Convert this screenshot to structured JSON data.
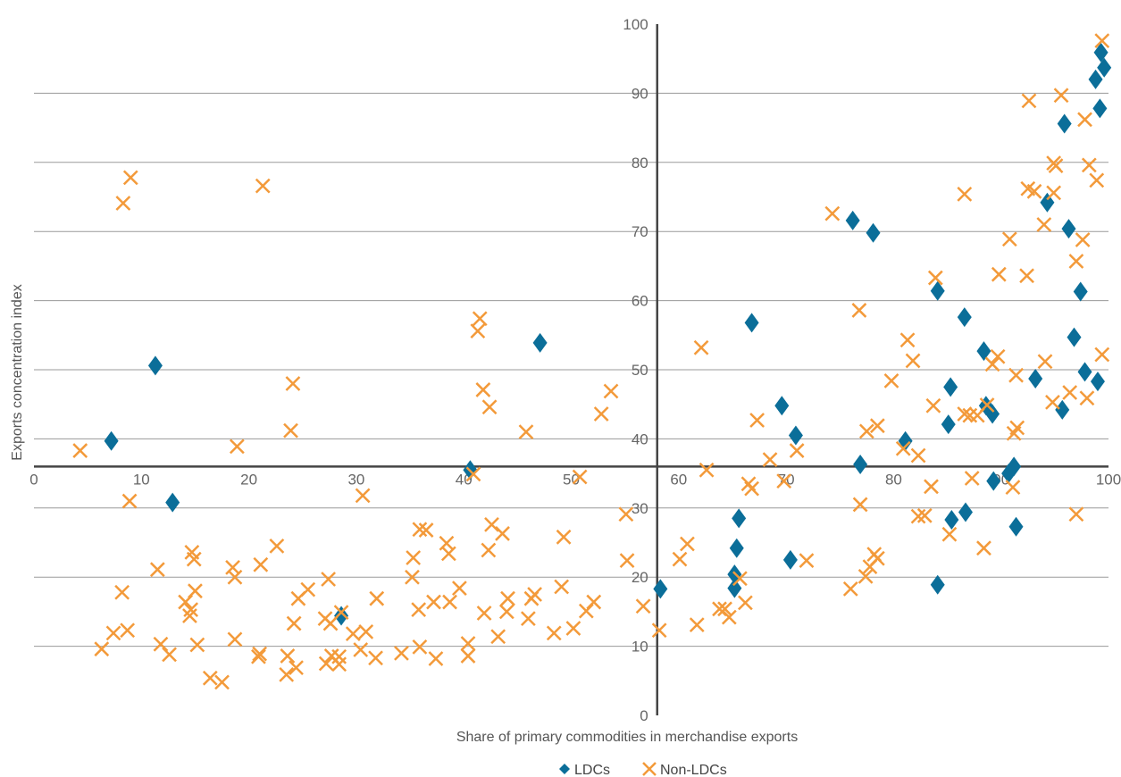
{
  "chart_data": {
    "type": "scatter",
    "xlabel": "Share of primary commodities in merchandise exports",
    "ylabel": "Exports concentration index",
    "xlim": [
      0,
      100
    ],
    "ylim": [
      0,
      100
    ],
    "x_ticks": [
      "0",
      "10",
      "20",
      "30",
      "40",
      "50",
      "60",
      "70",
      "80",
      "90",
      "100"
    ],
    "y_ticks": [
      "0",
      "10",
      "20",
      "30",
      "40",
      "50",
      "60",
      "70",
      "80",
      "90",
      "100"
    ],
    "x_axis_crosses_y_at": 36,
    "y_axis_crosses_x_at": 58,
    "grid": "horizontal",
    "legend_position": "bottom",
    "colors": {
      "LDCs": "#0b6e99",
      "Non-LDCs": "#f39a3a",
      "axis": "#444444",
      "grid": "#9a9a9a"
    },
    "series": [
      {
        "name": "LDCs",
        "marker": "diamond",
        "points": [
          [
            7.2,
            39.7
          ],
          [
            11.3,
            50.6
          ],
          [
            12.9,
            30.8
          ],
          [
            28.6,
            14.4
          ],
          [
            40.6,
            35.5
          ],
          [
            47.1,
            53.9
          ],
          [
            58.3,
            18.3
          ],
          [
            65.2,
            18.4
          ],
          [
            65.2,
            20.4
          ],
          [
            65.4,
            24.2
          ],
          [
            65.6,
            28.5
          ],
          [
            66.8,
            56.8
          ],
          [
            69.6,
            44.8
          ],
          [
            70.4,
            22.5
          ],
          [
            70.9,
            40.5
          ],
          [
            76.2,
            71.6
          ],
          [
            76.9,
            36.3
          ],
          [
            78.1,
            69.8
          ],
          [
            81.1,
            39.7
          ],
          [
            84.1,
            61.4
          ],
          [
            84.1,
            18.9
          ],
          [
            85.1,
            42.1
          ],
          [
            85.3,
            47.5
          ],
          [
            85.4,
            28.3
          ],
          [
            86.6,
            57.6
          ],
          [
            86.7,
            29.4
          ],
          [
            88.4,
            52.7
          ],
          [
            88.6,
            44.8
          ],
          [
            89.2,
            43.6
          ],
          [
            89.3,
            33.9
          ],
          [
            90.7,
            35.0
          ],
          [
            91.2,
            36.0
          ],
          [
            91.4,
            27.3
          ],
          [
            93.2,
            48.7
          ],
          [
            94.3,
            74.2
          ],
          [
            95.7,
            44.2
          ],
          [
            95.9,
            85.6
          ],
          [
            96.3,
            70.4
          ],
          [
            96.8,
            54.7
          ],
          [
            97.4,
            61.3
          ],
          [
            97.8,
            49.7
          ],
          [
            98.8,
            92.0
          ],
          [
            99.0,
            48.3
          ],
          [
            99.2,
            87.8
          ],
          [
            99.3,
            95.9
          ],
          [
            99.6,
            93.7
          ]
        ]
      },
      {
        "name": "Non-LDCs",
        "marker": "x",
        "points": [
          [
            4.3,
            38.3
          ],
          [
            6.3,
            9.6
          ],
          [
            7.4,
            11.9
          ],
          [
            8.2,
            17.8
          ],
          [
            8.3,
            74.1
          ],
          [
            8.7,
            12.3
          ],
          [
            8.9,
            31.0
          ],
          [
            9.0,
            77.8
          ],
          [
            11.5,
            21.1
          ],
          [
            11.8,
            10.3
          ],
          [
            12.6,
            8.8
          ],
          [
            14.1,
            16.4
          ],
          [
            14.5,
            14.4
          ],
          [
            14.6,
            15.3
          ],
          [
            14.7,
            23.6
          ],
          [
            14.9,
            22.6
          ],
          [
            15.0,
            18.0
          ],
          [
            15.2,
            10.2
          ],
          [
            16.4,
            5.4
          ],
          [
            17.5,
            4.8
          ],
          [
            18.5,
            21.4
          ],
          [
            18.7,
            20.0
          ],
          [
            18.7,
            11.0
          ],
          [
            18.9,
            38.9
          ],
          [
            20.9,
            8.5
          ],
          [
            21.0,
            8.9
          ],
          [
            21.1,
            21.8
          ],
          [
            21.3,
            76.6
          ],
          [
            22.6,
            24.5
          ],
          [
            23.5,
            5.9
          ],
          [
            23.6,
            8.6
          ],
          [
            23.9,
            41.2
          ],
          [
            24.1,
            48.0
          ],
          [
            24.2,
            13.3
          ],
          [
            24.4,
            6.9
          ],
          [
            24.6,
            16.9
          ],
          [
            25.5,
            18.2
          ],
          [
            27.1,
            14.0
          ],
          [
            27.2,
            7.5
          ],
          [
            27.4,
            19.7
          ],
          [
            27.6,
            13.3
          ],
          [
            27.7,
            8.6
          ],
          [
            28.4,
            8.5
          ],
          [
            28.4,
            7.4
          ],
          [
            28.6,
            14.9
          ],
          [
            29.7,
            11.8
          ],
          [
            30.4,
            9.5
          ],
          [
            30.6,
            31.8
          ],
          [
            30.9,
            12.1
          ],
          [
            31.8,
            8.3
          ],
          [
            31.9,
            16.9
          ],
          [
            34.2,
            9.0
          ],
          [
            35.2,
            20.0
          ],
          [
            35.3,
            22.8
          ],
          [
            35.8,
            15.3
          ],
          [
            35.9,
            26.9
          ],
          [
            35.9,
            9.9
          ],
          [
            36.5,
            26.8
          ],
          [
            37.2,
            16.4
          ],
          [
            37.4,
            8.2
          ],
          [
            38.4,
            24.9
          ],
          [
            38.6,
            23.4
          ],
          [
            38.7,
            16.4
          ],
          [
            39.6,
            18.4
          ],
          [
            40.4,
            10.4
          ],
          [
            40.4,
            8.6
          ],
          [
            40.9,
            34.9
          ],
          [
            41.3,
            55.6
          ],
          [
            41.5,
            57.4
          ],
          [
            41.8,
            47.1
          ],
          [
            41.9,
            14.8
          ],
          [
            42.3,
            23.9
          ],
          [
            42.4,
            44.6
          ],
          [
            42.6,
            27.6
          ],
          [
            43.2,
            11.4
          ],
          [
            43.6,
            26.3
          ],
          [
            44.0,
            15.0
          ],
          [
            44.1,
            16.9
          ],
          [
            45.8,
            41.0
          ],
          [
            46.0,
            14.0
          ],
          [
            46.3,
            16.9
          ],
          [
            46.6,
            17.5
          ],
          [
            48.4,
            11.9
          ],
          [
            49.1,
            18.6
          ],
          [
            49.3,
            25.8
          ],
          [
            50.2,
            12.6
          ],
          [
            50.8,
            34.5
          ],
          [
            51.4,
            15.1
          ],
          [
            52.1,
            16.4
          ],
          [
            52.8,
            43.6
          ],
          [
            53.7,
            46.9
          ],
          [
            55.1,
            29.1
          ],
          [
            55.2,
            22.4
          ],
          [
            56.7,
            15.8
          ],
          [
            58.2,
            12.3
          ],
          [
            60.1,
            22.6
          ],
          [
            60.8,
            24.8
          ],
          [
            61.7,
            13.1
          ],
          [
            62.1,
            53.2
          ],
          [
            62.6,
            35.5
          ],
          [
            63.8,
            15.4
          ],
          [
            64.3,
            15.4
          ],
          [
            64.7,
            14.2
          ],
          [
            65.7,
            19.8
          ],
          [
            66.2,
            16.3
          ],
          [
            66.5,
            33.5
          ],
          [
            66.8,
            32.8
          ],
          [
            67.3,
            42.7
          ],
          [
            68.5,
            37.0
          ],
          [
            69.8,
            33.9
          ],
          [
            71.0,
            38.3
          ],
          [
            71.9,
            22.4
          ],
          [
            74.3,
            72.6
          ],
          [
            76.0,
            18.3
          ],
          [
            76.8,
            58.6
          ],
          [
            76.9,
            30.5
          ],
          [
            77.4,
            20.1
          ],
          [
            77.5,
            41.1
          ],
          [
            77.8,
            21.5
          ],
          [
            78.2,
            23.3
          ],
          [
            78.5,
            22.7
          ],
          [
            78.5,
            41.9
          ],
          [
            79.8,
            48.4
          ],
          [
            80.9,
            38.6
          ],
          [
            81.3,
            54.3
          ],
          [
            81.8,
            51.3
          ],
          [
            82.3,
            37.6
          ],
          [
            82.3,
            28.8
          ],
          [
            82.9,
            28.9
          ],
          [
            83.5,
            33.1
          ],
          [
            83.7,
            44.8
          ],
          [
            83.9,
            63.3
          ],
          [
            85.2,
            26.2
          ],
          [
            86.6,
            43.6
          ],
          [
            86.6,
            75.4
          ],
          [
            87.1,
            43.4
          ],
          [
            87.3,
            34.3
          ],
          [
            87.8,
            43.4
          ],
          [
            88.4,
            24.2
          ],
          [
            88.7,
            44.9
          ],
          [
            89.2,
            50.8
          ],
          [
            89.7,
            51.9
          ],
          [
            89.8,
            63.8
          ],
          [
            90.8,
            68.9
          ],
          [
            91.1,
            33.0
          ],
          [
            91.2,
            40.8
          ],
          [
            91.4,
            49.2
          ],
          [
            91.5,
            41.6
          ],
          [
            92.4,
            63.6
          ],
          [
            92.5,
            76.2
          ],
          [
            92.6,
            88.9
          ],
          [
            93.1,
            75.8
          ],
          [
            94.0,
            71.0
          ],
          [
            94.1,
            51.2
          ],
          [
            94.8,
            45.3
          ],
          [
            94.9,
            79.9
          ],
          [
            94.9,
            75.6
          ],
          [
            95.1,
            79.5
          ],
          [
            95.6,
            89.7
          ],
          [
            96.4,
            46.7
          ],
          [
            97.0,
            65.7
          ],
          [
            97.0,
            29.1
          ],
          [
            97.6,
            68.8
          ],
          [
            97.8,
            86.2
          ],
          [
            98.0,
            45.9
          ],
          [
            98.2,
            79.6
          ],
          [
            98.9,
            77.4
          ],
          [
            99.4,
            52.2
          ],
          [
            99.4,
            97.6
          ]
        ]
      }
    ]
  }
}
